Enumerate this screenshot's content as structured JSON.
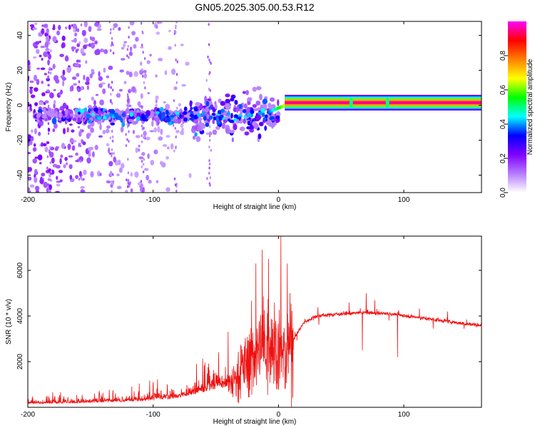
{
  "title": "GN05.2025.305.00.53.R12",
  "chart_data": [
    {
      "type": "heatmap",
      "title": "GN05.2025.305.00.53.R12",
      "xlabel": "Height of straight line (km)",
      "ylabel": "Frequency (Hz)",
      "xlim": [
        -200,
        162
      ],
      "ylim": [
        -50,
        48
      ],
      "xticks": [
        -200,
        -100,
        0,
        100
      ],
      "yticks": [
        -40,
        -20,
        0,
        20,
        40
      ],
      "colorbar": {
        "label": "Normalized spectral amplitude",
        "range": [
          0,
          1
        ],
        "ticks": [
          "0.0",
          "0.2",
          "0.4",
          "0.6",
          "0.8"
        ],
        "tick_values": [
          0.0,
          0.2,
          0.4,
          0.6,
          0.8
        ],
        "colors": [
          "#ffffff",
          "#b57bff",
          "#8000ff",
          "#0000ff",
          "#00ffff",
          "#00ff00",
          "#ffff00",
          "#ff8000",
          "#ff0000",
          "#ff00ff"
        ]
      },
      "features": {
        "carrier_line": {
          "freq_hz": 1.5,
          "x_start": 0,
          "x_end": 162,
          "amplitude": 0.95
        },
        "scatter_region": {
          "x_start": -200,
          "x_end": 0
        },
        "spikes_x": [
          58,
          87
        ]
      }
    },
    {
      "type": "line",
      "xlabel": "Height of straight line (km)",
      "ylabel": "SNR (10 * v/v)",
      "xlim": [
        -200,
        162
      ],
      "ylim": [
        0,
        7500
      ],
      "xticks": [
        -200,
        -100,
        0,
        100
      ],
      "yticks": [
        2000,
        4000,
        6000
      ],
      "color": "#ee1111",
      "series": [
        {
          "name": "SNR",
          "x": [
            -200,
            -150,
            -120,
            -100,
            -80,
            -60,
            -40,
            -30,
            -20,
            -10,
            -5,
            0,
            5,
            10,
            20,
            30,
            50,
            70,
            90,
            110,
            130,
            150,
            162
          ],
          "values": [
            150,
            200,
            250,
            300,
            400,
            650,
            900,
            1600,
            2300,
            2800,
            3000,
            2500,
            2200,
            2800,
            3700,
            4000,
            4100,
            4150,
            4100,
            3950,
            3800,
            3650,
            3600
          ]
        }
      ],
      "spikes": [
        {
          "x": -18,
          "y": 6300
        },
        {
          "x": -13,
          "y": 6900
        },
        {
          "x": -8,
          "y": 6500
        },
        {
          "x": 2,
          "y": 7500
        },
        {
          "x": 7,
          "y": 6300
        },
        {
          "x": 70,
          "y": 5000
        },
        {
          "x": 95,
          "y": 5300
        },
        {
          "x": 67,
          "y": 2500
        },
        {
          "x": 95,
          "y": 2200
        }
      ]
    }
  ]
}
